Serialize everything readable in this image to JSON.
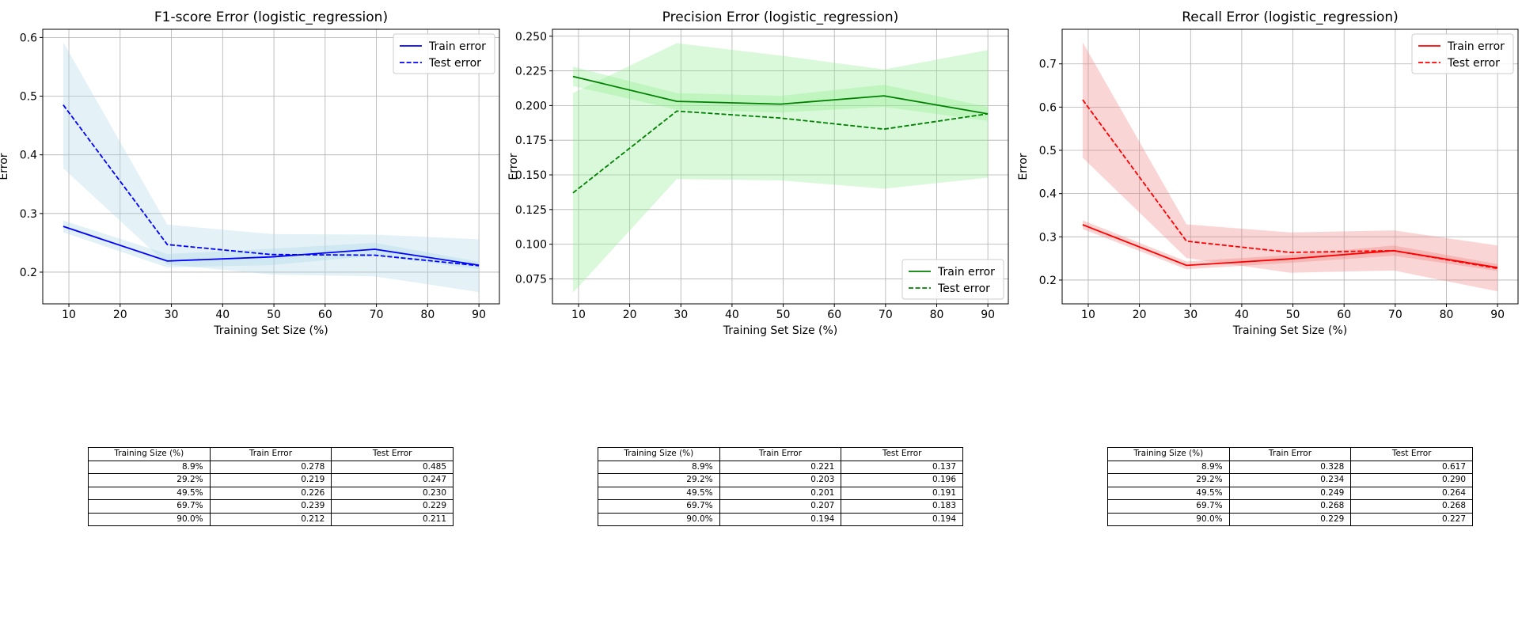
{
  "chart_data": [
    {
      "type": "line",
      "title": "F1-score Error (logistic_regression)",
      "xlabel": "Training Set Size (%)",
      "ylabel": "Error",
      "color": "#0000ff",
      "band_color": "#add8e6",
      "legend_position": "upper right",
      "xlim": [
        4.9,
        94.0
      ],
      "ylim": [
        0.146,
        0.614
      ],
      "xticks": [
        10,
        20,
        30,
        40,
        50,
        60,
        70,
        80,
        90
      ],
      "yticks": [
        0.2,
        0.3,
        0.4,
        0.5,
        0.6
      ],
      "ytick_labels": [
        "0.2",
        "0.3",
        "0.4",
        "0.5",
        "0.6"
      ],
      "grid": true,
      "x": [
        8.9,
        29.2,
        49.5,
        69.7,
        90.0
      ],
      "series": [
        {
          "name": "Train error",
          "style": "solid",
          "values": [
            0.278,
            0.219,
            0.226,
            0.239,
            0.212
          ],
          "band_low": [
            0.268,
            0.208,
            0.212,
            0.228,
            0.205
          ],
          "band_high": [
            0.288,
            0.231,
            0.24,
            0.25,
            0.218
          ]
        },
        {
          "name": "Test error",
          "style": "dashed",
          "values": [
            0.485,
            0.247,
            0.23,
            0.229,
            0.211
          ],
          "band_low": [
            0.377,
            0.213,
            0.196,
            0.193,
            0.166
          ],
          "band_high": [
            0.592,
            0.281,
            0.265,
            0.264,
            0.256
          ]
        }
      ],
      "table": {
        "headers": [
          "Training Size (%)",
          "Train Error",
          "Test Error"
        ],
        "rows": [
          [
            "8.9%",
            "0.278",
            "0.485"
          ],
          [
            "29.2%",
            "0.219",
            "0.247"
          ],
          [
            "49.5%",
            "0.226",
            "0.230"
          ],
          [
            "69.7%",
            "0.239",
            "0.229"
          ],
          [
            "90.0%",
            "0.212",
            "0.211"
          ]
        ]
      }
    },
    {
      "type": "line",
      "title": "Precision Error (logistic_regression)",
      "xlabel": "Training Set Size (%)",
      "ylabel": "Error",
      "color": "#008000",
      "band_color": "#90ee90",
      "legend_position": "lower right",
      "xlim": [
        4.9,
        94.0
      ],
      "ylim": [
        0.057,
        0.255
      ],
      "xticks": [
        10,
        20,
        30,
        40,
        50,
        60,
        70,
        80,
        90
      ],
      "yticks": [
        0.075,
        0.1,
        0.125,
        0.15,
        0.175,
        0.2,
        0.225,
        0.25
      ],
      "ytick_labels": [
        "0.075",
        "0.100",
        "0.125",
        "0.150",
        "0.175",
        "0.200",
        "0.225",
        "0.250"
      ],
      "grid": true,
      "x": [
        8.9,
        29.2,
        49.5,
        69.7,
        90.0
      ],
      "series": [
        {
          "name": "Train error",
          "style": "solid",
          "values": [
            0.221,
            0.203,
            0.201,
            0.207,
            0.194
          ],
          "band_low": [
            0.214,
            0.197,
            0.195,
            0.199,
            0.189
          ],
          "band_high": [
            0.228,
            0.209,
            0.207,
            0.215,
            0.199
          ]
        },
        {
          "name": "Test error",
          "style": "dashed",
          "values": [
            0.137,
            0.196,
            0.191,
            0.183,
            0.194
          ],
          "band_low": [
            0.065,
            0.147,
            0.146,
            0.14,
            0.148
          ],
          "band_high": [
            0.209,
            0.245,
            0.236,
            0.226,
            0.24
          ]
        }
      ],
      "table": {
        "headers": [
          "Training Size (%)",
          "Train Error",
          "Test Error"
        ],
        "rows": [
          [
            "8.9%",
            "0.221",
            "0.137"
          ],
          [
            "29.2%",
            "0.203",
            "0.196"
          ],
          [
            "49.5%",
            "0.201",
            "0.191"
          ],
          [
            "69.7%",
            "0.207",
            "0.183"
          ],
          [
            "90.0%",
            "0.194",
            "0.194"
          ]
        ]
      }
    },
    {
      "type": "line",
      "title": "Recall Error (logistic_regression)",
      "xlabel": "Training Set Size (%)",
      "ylabel": "Error",
      "color": "#ff0000",
      "band_color": "#f08080",
      "legend_position": "upper right",
      "xlim": [
        4.9,
        94.0
      ],
      "ylim": [
        0.145,
        0.78
      ],
      "xticks": [
        10,
        20,
        30,
        40,
        50,
        60,
        70,
        80,
        90
      ],
      "yticks": [
        0.2,
        0.3,
        0.4,
        0.5,
        0.6,
        0.7
      ],
      "ytick_labels": [
        "0.2",
        "0.3",
        "0.4",
        "0.5",
        "0.6",
        "0.7"
      ],
      "grid": true,
      "x": [
        8.9,
        29.2,
        49.5,
        69.7,
        90.0
      ],
      "series": [
        {
          "name": "Train error",
          "style": "solid",
          "values": [
            0.328,
            0.234,
            0.249,
            0.268,
            0.229
          ],
          "band_low": [
            0.318,
            0.225,
            0.24,
            0.256,
            0.221
          ],
          "band_high": [
            0.338,
            0.243,
            0.258,
            0.28,
            0.237
          ]
        },
        {
          "name": "Test error",
          "style": "dashed",
          "values": [
            0.617,
            0.29,
            0.264,
            0.268,
            0.227
          ],
          "band_low": [
            0.483,
            0.251,
            0.217,
            0.222,
            0.174
          ],
          "band_high": [
            0.75,
            0.329,
            0.31,
            0.315,
            0.28
          ]
        }
      ],
      "table": {
        "headers": [
          "Training Size (%)",
          "Train Error",
          "Test Error"
        ],
        "rows": [
          [
            "8.9%",
            "0.328",
            "0.617"
          ],
          [
            "29.2%",
            "0.234",
            "0.290"
          ],
          [
            "49.5%",
            "0.249",
            "0.264"
          ],
          [
            "69.7%",
            "0.268",
            "0.268"
          ],
          [
            "90.0%",
            "0.229",
            "0.227"
          ]
        ]
      }
    }
  ]
}
